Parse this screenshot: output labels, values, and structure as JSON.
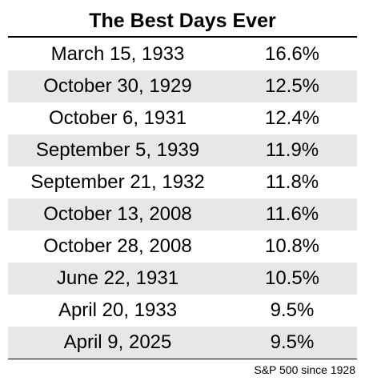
{
  "header": {
    "title": "The Best Days Ever"
  },
  "table": {
    "rows": [
      [
        "March 15, 1933",
        "16.6%"
      ],
      [
        "October 30, 1929",
        "12.5%"
      ],
      [
        "October 6, 1931",
        "12.4%"
      ],
      [
        "September 5, 1939",
        "11.9%"
      ],
      [
        "September 21, 1932",
        "11.8%"
      ],
      [
        "October 13, 2008",
        "11.6%"
      ],
      [
        "October 28, 2008",
        "10.8%"
      ],
      [
        "June 22, 1931",
        "10.5%"
      ],
      [
        "April 20, 1933",
        "9.5%"
      ],
      [
        "April 9, 2025",
        "9.5%"
      ]
    ]
  },
  "footnote": "S&P 500 since 1928"
}
